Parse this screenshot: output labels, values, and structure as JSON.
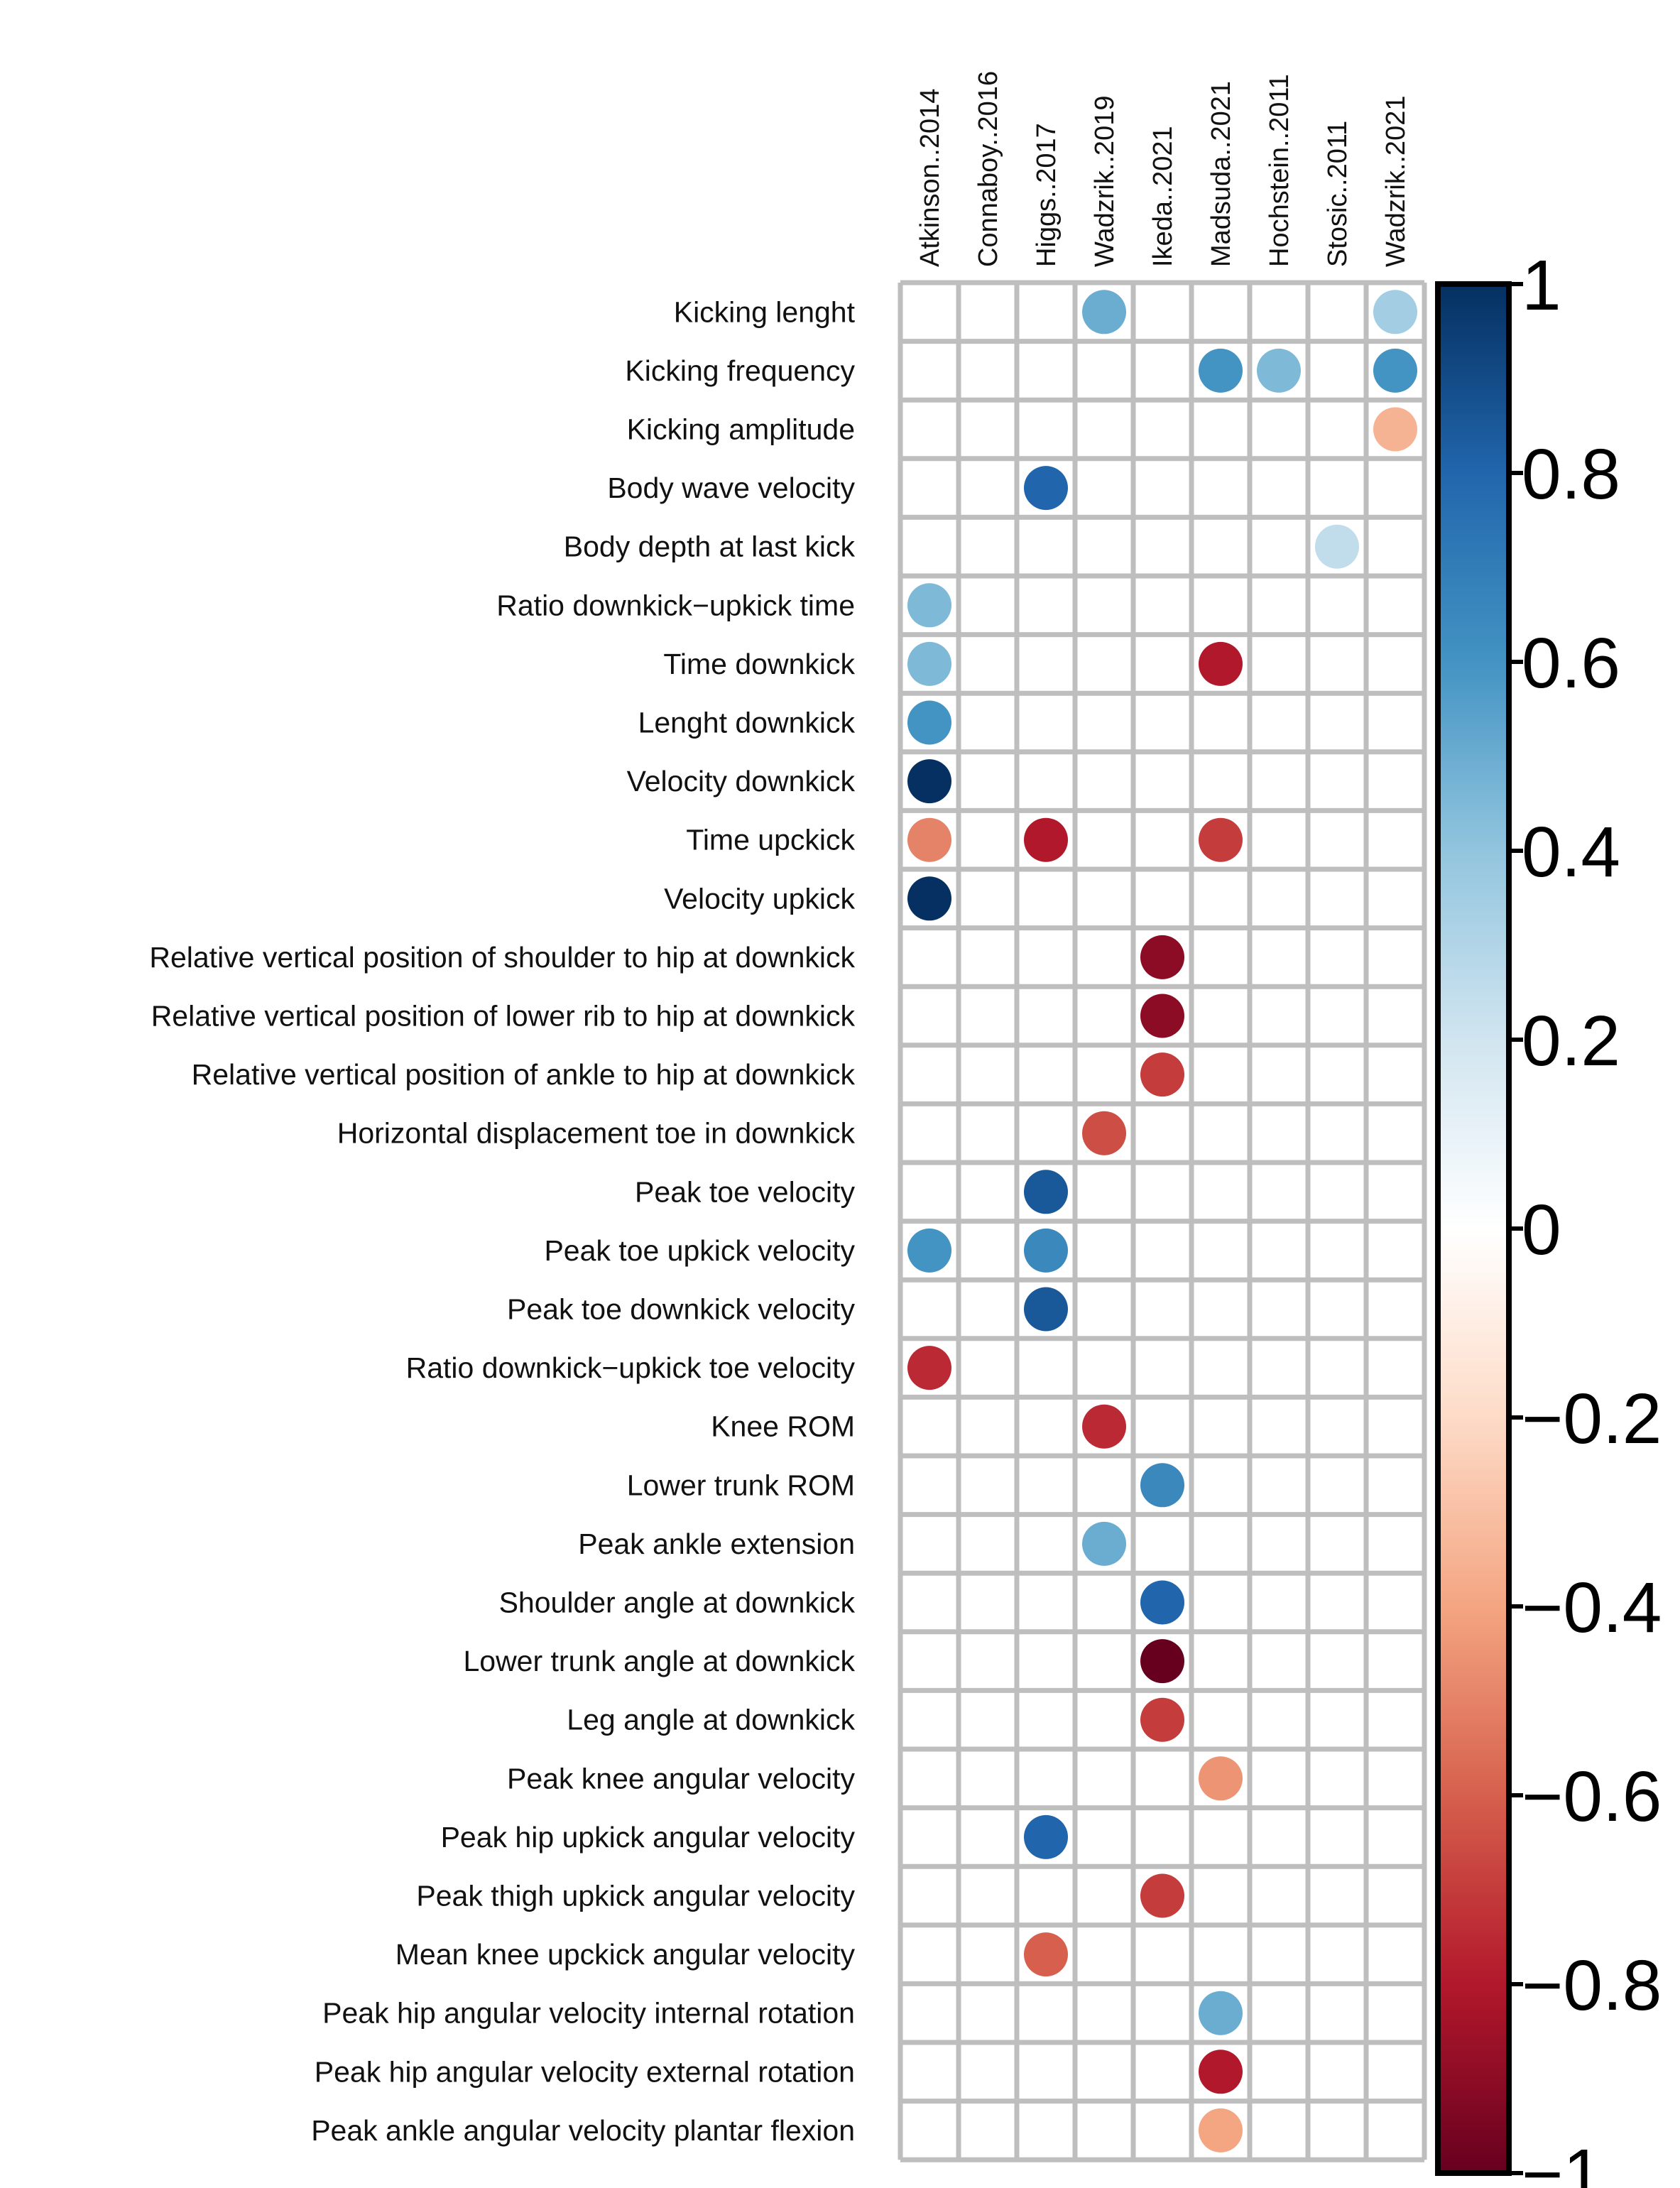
{
  "chart_data": {
    "type": "heatmap",
    "title": "",
    "columns": [
      "Atkinson..2014",
      "Connaboy..2016",
      "Higgs..2017",
      "Wadzrik..2019",
      "Ikeda..2021",
      "Madsuda..2021",
      "Hochstein..2011",
      "Stosic..2011",
      "Wadzrik..2021"
    ],
    "rows": [
      "Kicking lenght",
      "Kicking frequency",
      "Kicking amplitude",
      "Body wave velocity",
      "Body depth at last kick",
      "Ratio downkick−upkick time",
      "Time downkick",
      "Lenght downkick",
      "Velocity downkick",
      "Time upckick",
      "Velocity upkick",
      "Relative vertical position of shoulder to hip at downkick",
      "Relative vertical position of lower rib to hip at downkick",
      "Relative vertical position of ankle to hip at downkick",
      "Horizontal displacement toe in downkick",
      "Peak toe velocity",
      "Peak toe upkick velocity",
      "Peak toe downkick velocity",
      "Ratio downkick−upkick toe velocity",
      "Knee ROM",
      "Lower trunk ROM",
      "Peak ankle extension",
      "Shoulder angle at downkick",
      "Lower trunk angle at downkick",
      "Leg angle at downkick",
      "Peak knee angular velocity",
      "Peak hip upkick angular velocity",
      "Peak thigh upkick angular velocity ",
      "Mean knee upckick angular velocity",
      "Peak hip angular velocity internal rotation",
      "Peak hip angular velocity external rotation",
      "Peak ankle angular velocity plantar flexion"
    ],
    "values": [
      [
        null,
        null,
        null,
        0.5,
        null,
        null,
        null,
        null,
        0.35
      ],
      [
        null,
        null,
        null,
        null,
        null,
        0.6,
        0.45,
        null,
        0.6
      ],
      [
        null,
        null,
        null,
        null,
        null,
        null,
        null,
        null,
        -0.35
      ],
      [
        null,
        null,
        0.8,
        null,
        null,
        null,
        null,
        null,
        null
      ],
      [
        null,
        null,
        null,
        null,
        null,
        null,
        null,
        0.25,
        null
      ],
      [
        0.45,
        null,
        null,
        null,
        null,
        null,
        null,
        null,
        null
      ],
      [
        0.45,
        null,
        null,
        null,
        null,
        -0.8,
        null,
        null,
        null
      ],
      [
        0.6,
        null,
        null,
        null,
        null,
        null,
        null,
        null,
        null
      ],
      [
        1.0,
        null,
        null,
        null,
        null,
        null,
        null,
        null,
        null
      ],
      [
        -0.5,
        null,
        -0.8,
        null,
        null,
        -0.7,
        null,
        null,
        null
      ],
      [
        1.0,
        null,
        null,
        null,
        null,
        null,
        null,
        null,
        null
      ],
      [
        null,
        null,
        null,
        null,
        -0.9,
        null,
        null,
        null,
        null
      ],
      [
        null,
        null,
        null,
        null,
        -0.9,
        null,
        null,
        null,
        null
      ],
      [
        null,
        null,
        null,
        null,
        -0.7,
        null,
        null,
        null,
        null
      ],
      [
        null,
        null,
        null,
        -0.65,
        null,
        null,
        null,
        null,
        null
      ],
      [
        null,
        null,
        0.85,
        null,
        null,
        null,
        null,
        null,
        null
      ],
      [
        0.6,
        null,
        0.65,
        null,
        null,
        null,
        null,
        null,
        null
      ],
      [
        null,
        null,
        0.85,
        null,
        null,
        null,
        null,
        null,
        null
      ],
      [
        -0.75,
        null,
        null,
        null,
        null,
        null,
        null,
        null,
        null
      ],
      [
        null,
        null,
        null,
        -0.75,
        null,
        null,
        null,
        null,
        null
      ],
      [
        null,
        null,
        null,
        null,
        0.65,
        null,
        null,
        null,
        null
      ],
      [
        null,
        null,
        null,
        0.5,
        null,
        null,
        null,
        null,
        null
      ],
      [
        null,
        null,
        null,
        null,
        0.8,
        null,
        null,
        null,
        null
      ],
      [
        null,
        null,
        null,
        null,
        -1.0,
        null,
        null,
        null,
        null
      ],
      [
        null,
        null,
        null,
        null,
        -0.7,
        null,
        null,
        null,
        null
      ],
      [
        null,
        null,
        null,
        null,
        null,
        -0.45,
        null,
        null,
        null
      ],
      [
        null,
        null,
        0.8,
        null,
        null,
        null,
        null,
        null,
        null
      ],
      [
        null,
        null,
        null,
        null,
        -0.7,
        null,
        null,
        null,
        null
      ],
      [
        null,
        null,
        -0.6,
        null,
        null,
        null,
        null,
        null,
        null
      ],
      [
        null,
        null,
        null,
        null,
        null,
        0.5,
        null,
        null,
        null
      ],
      [
        null,
        null,
        null,
        null,
        null,
        -0.8,
        null,
        null,
        null
      ],
      [
        null,
        null,
        null,
        null,
        null,
        -0.4,
        null,
        null,
        null
      ]
    ],
    "colorbar": {
      "range": [
        -1,
        1
      ],
      "ticks": [
        1,
        0.8,
        0.6,
        0.4,
        0.2,
        0,
        -0.2,
        -0.4,
        -0.6,
        -0.8,
        -1
      ],
      "tick_labels": [
        "1",
        "0.8",
        "0.6",
        "0.4",
        "0.2",
        "0",
        "−0.2",
        "−0.4",
        "−0.6",
        "−0.8",
        "−1"
      ]
    },
    "palette": {
      "stops": [
        "#67001F",
        "#B2182B",
        "#D6604D",
        "#F4A582",
        "#FDDBC7",
        "#FFFFFF",
        "#D1E5F0",
        "#92C5DE",
        "#4393C3",
        "#2166AC",
        "#053061"
      ],
      "grid": "#BEBEBE",
      "frame": "#000000"
    },
    "legend": "right",
    "grid": true,
    "marker": "circle"
  }
}
